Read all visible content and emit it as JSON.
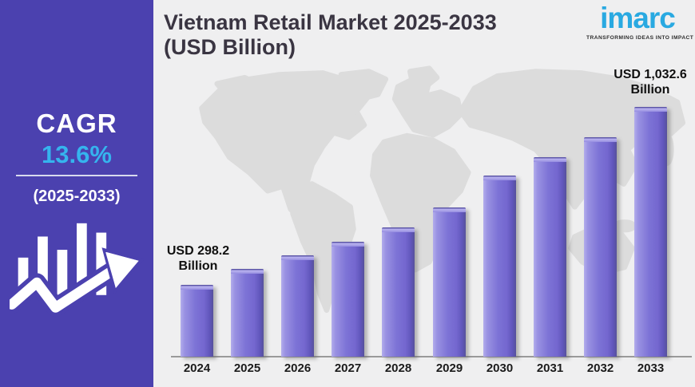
{
  "sidebar": {
    "cagr_label": "CAGR",
    "cagr_value": "13.6%",
    "period": "(2025-2033)"
  },
  "header": {
    "title_line1": "Vietnam Retail Market 2025-2033",
    "title_line2": "(USD Billion)"
  },
  "logo": {
    "name": "imarc",
    "tagline": "TRANSFORMING IDEAS INTO IMPACT"
  },
  "colors": {
    "background": "#efeff0",
    "sidebar_bg": "#4b41af",
    "accent_blue": "#35b4ee",
    "logo_blue": "#29a9e1",
    "title_text": "#3a3542",
    "bar_purple": "#7d73d6",
    "bar_highlight": "#b3adec",
    "bar_shade": "#57519b",
    "map_gray": "#dcdcdc"
  },
  "chart_data": {
    "type": "bar",
    "title": "Vietnam Retail Market 2025-2033 (USD Billion)",
    "unit": "USD Billion",
    "categories": [
      "2024",
      "2025",
      "2026",
      "2027",
      "2028",
      "2029",
      "2030",
      "2031",
      "2032",
      "2033"
    ],
    "values": [
      298.2,
      364,
      420,
      475,
      534,
      616,
      750,
      823,
      908,
      1032.6
    ],
    "value_note": "Only 2024 and 2033 carry data labels in the figure; intermediate values estimated from bar heights",
    "callouts": {
      "first": {
        "category": "2024",
        "line1": "USD 298.2",
        "line2": "Billion"
      },
      "last": {
        "category": "2033",
        "line1": "USD 1,032.6",
        "line2": "Billion"
      }
    },
    "xlabel": "",
    "ylabel": "",
    "ylim": [
      0,
      1100
    ],
    "grid": false,
    "legend": false,
    "background_decoration": "world-map silhouette"
  }
}
